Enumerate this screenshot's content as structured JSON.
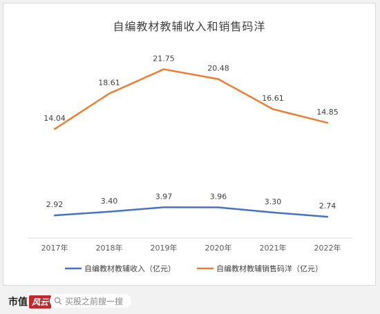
{
  "chart_data": {
    "type": "line",
    "title": "自编教材教辅收入和销售码洋",
    "categories": [
      "2017年",
      "2018年",
      "2019年",
      "2020年",
      "2021年",
      "2022年"
    ],
    "series": [
      {
        "name": "自编教材教辅收入（亿元）",
        "values": [
          2.92,
          3.4,
          3.97,
          3.96,
          3.3,
          2.74
        ],
        "labels": [
          "2.92",
          "3.40",
          "3.97",
          "3.96",
          "3.30",
          "2.74"
        ],
        "color": "#4472c4"
      },
      {
        "name": "自编教材教辅销售码洋（亿元）",
        "values": [
          14.04,
          18.61,
          21.75,
          20.48,
          16.61,
          14.85
        ],
        "labels": [
          "14.04",
          "18.61",
          "21.75",
          "20.48",
          "16.61",
          "14.85"
        ],
        "color": "#ed7d31"
      }
    ],
    "ylim": [
      0,
      24
    ],
    "grid": false,
    "legend": "bottom"
  },
  "footer": {
    "brand": "市值",
    "brand_mark": "风云",
    "search_placeholder": "买股之前搜一搜",
    "search_icon": "search-icon"
  }
}
